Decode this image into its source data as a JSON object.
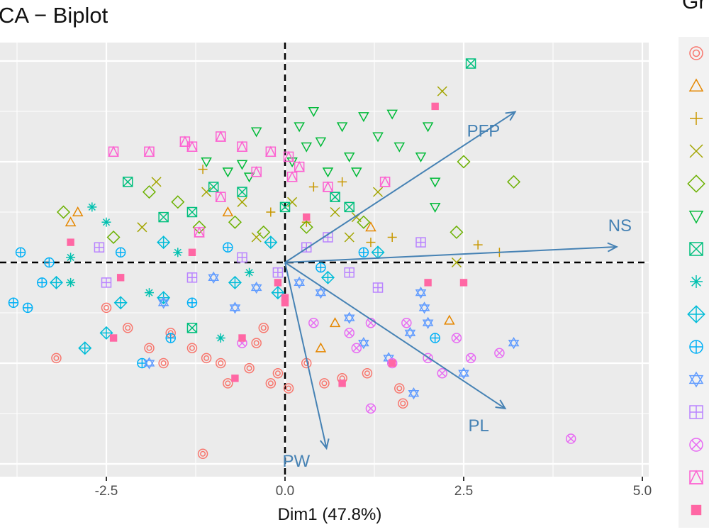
{
  "chart_data": {
    "type": "scatter",
    "title": "CA − Biplot",
    "xlabel": "Dim1 (47.8%)",
    "xlim": [
      -4.0,
      5.1
    ],
    "ylim": [
      -4.25,
      4.35
    ],
    "x_ticks": [
      "-2.5",
      "0.0",
      "2.5",
      "5.0"
    ],
    "x_tick_values": [
      -2.5,
      0,
      2.5,
      5
    ],
    "grid": true,
    "legend_title": "Gr",
    "legend_position": "right",
    "reference_lines": {
      "x": 0,
      "y": 0,
      "style": "dashed"
    },
    "groups": [
      {
        "shape": "circle-double",
        "color": "#F8766D"
      },
      {
        "shape": "triangle-open",
        "color": "#E58700"
      },
      {
        "shape": "plus",
        "color": "#C99800"
      },
      {
        "shape": "cross",
        "color": "#A3A500"
      },
      {
        "shape": "diamond-open",
        "color": "#6BB100"
      },
      {
        "shape": "triangle-down-open",
        "color": "#00BA38"
      },
      {
        "shape": "square-crossed",
        "color": "#00BF7D"
      },
      {
        "shape": "asterisk",
        "color": "#00C0AF"
      },
      {
        "shape": "diamond-plus",
        "color": "#00BCD8"
      },
      {
        "shape": "circle-plus",
        "color": "#00B0F6"
      },
      {
        "shape": "star-of-david",
        "color": "#619CFF"
      },
      {
        "shape": "square-plus",
        "color": "#B983FF"
      },
      {
        "shape": "circle-cross",
        "color": "#E76BF3"
      },
      {
        "shape": "square-triangle",
        "color": "#FD61D1"
      },
      {
        "shape": "square-filled",
        "color": "#FF67A4"
      }
    ],
    "variables": [
      {
        "name": "PFP",
        "x": 3.22,
        "y": 2.99
      },
      {
        "name": "NS",
        "x": 4.64,
        "y": 0.31
      },
      {
        "name": "PL",
        "x": 3.08,
        "y": -2.9
      },
      {
        "name": "PW",
        "x": 0.58,
        "y": -3.69
      }
    ],
    "arrow_color": "#4682B4",
    "points": [
      [
        -3.2,
        -1.9,
        0
      ],
      [
        -2.5,
        -0.9,
        0
      ],
      [
        -2.2,
        -1.3,
        0
      ],
      [
        -1.9,
        -1.7,
        0
      ],
      [
        -1.6,
        -1.4,
        0
      ],
      [
        -1.3,
        -1.7,
        0
      ],
      [
        -1.1,
        -1.9,
        0
      ],
      [
        -0.9,
        -2.0,
        0
      ],
      [
        -0.8,
        -2.4,
        0
      ],
      [
        -0.5,
        -2.1,
        0
      ],
      [
        -0.4,
        -1.6,
        0
      ],
      [
        -0.3,
        -1.3,
        0
      ],
      [
        -0.1,
        -2.2,
        0
      ],
      [
        0.05,
        -2.5,
        0
      ],
      [
        0.3,
        -2.0,
        0
      ],
      [
        0.55,
        -2.4,
        0
      ],
      [
        0.8,
        -2.3,
        0
      ],
      [
        1.15,
        -2.2,
        0
      ],
      [
        1.6,
        -2.5,
        0
      ],
      [
        1.65,
        -2.8,
        0
      ],
      [
        -1.15,
        -3.8,
        0
      ],
      [
        -0.2,
        -2.4,
        0
      ],
      [
        -1.7,
        -2.0,
        0
      ],
      [
        -3.0,
        0.8,
        1
      ],
      [
        -2.9,
        1.0,
        1
      ],
      [
        0.5,
        -1.7,
        1
      ],
      [
        2.3,
        -1.15,
        1
      ],
      [
        0.7,
        -1.2,
        1
      ],
      [
        1.2,
        0.7,
        1
      ],
      [
        -0.8,
        1.0,
        1
      ],
      [
        -1.15,
        1.85,
        2
      ],
      [
        0.4,
        1.5,
        2
      ],
      [
        0.8,
        1.6,
        2
      ],
      [
        1.5,
        0.5,
        2
      ],
      [
        2.7,
        0.35,
        2
      ],
      [
        3.0,
        0.2,
        2
      ],
      [
        1.2,
        0.4,
        2
      ],
      [
        -0.2,
        1.0,
        2
      ],
      [
        0.3,
        0.8,
        2
      ],
      [
        2.2,
        3.4,
        3
      ],
      [
        -1.8,
        1.6,
        3
      ],
      [
        -0.6,
        1.2,
        3
      ],
      [
        0.1,
        1.2,
        3
      ],
      [
        1.0,
        0.9,
        3
      ],
      [
        2.4,
        0.0,
        3
      ],
      [
        -2.0,
        0.7,
        3
      ],
      [
        -1.1,
        1.4,
        3
      ],
      [
        0.7,
        1.0,
        3
      ],
      [
        -0.4,
        0.5,
        3
      ],
      [
        0.9,
        0.5,
        3
      ],
      [
        1.3,
        1.4,
        3
      ],
      [
        -3.1,
        1.0,
        4
      ],
      [
        -1.9,
        1.4,
        4
      ],
      [
        -1.5,
        1.2,
        4
      ],
      [
        -0.7,
        0.8,
        4
      ],
      [
        2.5,
        2.0,
        4
      ],
      [
        3.2,
        1.6,
        4
      ],
      [
        2.4,
        0.6,
        4
      ],
      [
        -2.4,
        0.5,
        4
      ],
      [
        -0.3,
        0.6,
        4
      ],
      [
        0.3,
        0.7,
        4
      ],
      [
        1.1,
        0.8,
        4
      ],
      [
        -1.2,
        0.7,
        4
      ],
      [
        -0.4,
        2.6,
        5
      ],
      [
        0.4,
        3.0,
        5
      ],
      [
        0.5,
        2.4,
        5
      ],
      [
        0.9,
        2.1,
        5
      ],
      [
        1.1,
        2.9,
        5
      ],
      [
        1.3,
        2.5,
        5
      ],
      [
        1.5,
        2.95,
        5
      ],
      [
        1.6,
        2.3,
        5
      ],
      [
        1.9,
        2.1,
        5
      ],
      [
        -1.1,
        2.0,
        5
      ],
      [
        -0.8,
        1.8,
        5
      ],
      [
        0.1,
        2.0,
        5
      ],
      [
        0.2,
        2.7,
        5
      ],
      [
        0.8,
        2.7,
        5
      ],
      [
        2.1,
        1.6,
        5
      ],
      [
        2.0,
        2.7,
        5
      ],
      [
        -0.6,
        1.95,
        5
      ],
      [
        1.0,
        1.8,
        5
      ],
      [
        0.6,
        1.8,
        5
      ],
      [
        2.1,
        1.1,
        5
      ],
      [
        -0.5,
        1.7,
        5
      ],
      [
        0.3,
        2.3,
        5
      ],
      [
        2.6,
        3.95,
        6
      ],
      [
        -1.0,
        1.5,
        6
      ],
      [
        -0.6,
        1.4,
        6
      ],
      [
        -1.3,
        1.0,
        6
      ],
      [
        0.7,
        1.3,
        6
      ],
      [
        0.0,
        1.1,
        6
      ],
      [
        -1.7,
        0.9,
        6
      ],
      [
        -2.2,
        1.6,
        6
      ],
      [
        0.9,
        1.1,
        6
      ],
      [
        -1.3,
        -1.3,
        6
      ],
      [
        -2.7,
        1.1,
        7
      ],
      [
        -3.0,
        0.1,
        7
      ],
      [
        -2.5,
        0.8,
        7
      ],
      [
        -3.0,
        -0.4,
        7
      ],
      [
        -1.9,
        -0.6,
        7
      ],
      [
        -0.9,
        -1.5,
        7
      ],
      [
        -0.5,
        -0.2,
        7
      ],
      [
        -1.5,
        0.2,
        7
      ],
      [
        -3.2,
        -0.4,
        8
      ],
      [
        -2.8,
        -1.7,
        8
      ],
      [
        -2.5,
        -1.4,
        8
      ],
      [
        -2.3,
        -0.8,
        8
      ],
      [
        -1.7,
        -0.7,
        8
      ],
      [
        -0.7,
        -0.4,
        8
      ],
      [
        -0.2,
        0.4,
        8
      ],
      [
        -1.7,
        0.4,
        8
      ],
      [
        -0.1,
        -0.6,
        8
      ],
      [
        0.6,
        -0.3,
        8
      ],
      [
        1.3,
        0.2,
        8
      ],
      [
        -3.7,
        0.2,
        9
      ],
      [
        -3.8,
        -0.8,
        9
      ],
      [
        -3.6,
        -0.9,
        9
      ],
      [
        -3.3,
        0.0,
        9
      ],
      [
        -3.4,
        -0.4,
        9
      ],
      [
        -2.0,
        -2.0,
        9
      ],
      [
        -1.6,
        -1.5,
        9
      ],
      [
        -1.3,
        -0.8,
        9
      ],
      [
        -0.8,
        0.3,
        9
      ],
      [
        -2.3,
        0.2,
        9
      ],
      [
        1.1,
        0.2,
        9
      ],
      [
        0.5,
        -0.1,
        9
      ],
      [
        2.1,
        -1.5,
        9
      ],
      [
        -1.9,
        -2.0,
        10
      ],
      [
        -1.0,
        -0.3,
        10
      ],
      [
        -0.4,
        -0.5,
        10
      ],
      [
        0.5,
        -0.6,
        10
      ],
      [
        0.9,
        -1.1,
        10
      ],
      [
        1.1,
        -1.6,
        10
      ],
      [
        1.45,
        -1.9,
        10
      ],
      [
        1.75,
        -1.4,
        10
      ],
      [
        1.95,
        -0.9,
        10
      ],
      [
        2.0,
        -1.2,
        10
      ],
      [
        2.5,
        -2.2,
        10
      ],
      [
        3.2,
        -1.6,
        10
      ],
      [
        1.8,
        -2.6,
        10
      ],
      [
        0.2,
        -0.4,
        10
      ],
      [
        -0.7,
        -0.9,
        10
      ],
      [
        1.9,
        -0.6,
        10
      ],
      [
        -1.7,
        -0.8,
        10
      ],
      [
        -2.6,
        0.3,
        11
      ],
      [
        -2.5,
        -0.4,
        11
      ],
      [
        -1.3,
        -0.3,
        11
      ],
      [
        -0.6,
        0.1,
        11
      ],
      [
        0.3,
        0.3,
        11
      ],
      [
        0.9,
        -0.2,
        11
      ],
      [
        1.3,
        -0.5,
        11
      ],
      [
        1.9,
        0.4,
        11
      ],
      [
        0.6,
        0.5,
        11
      ],
      [
        -0.1,
        -0.2,
        11
      ],
      [
        4.0,
        -3.5,
        12
      ],
      [
        1.5,
        -2.0,
        12
      ],
      [
        1.0,
        -1.7,
        12
      ],
      [
        2.4,
        -1.5,
        12
      ],
      [
        2.0,
        -1.9,
        12
      ],
      [
        2.6,
        -1.9,
        12
      ],
      [
        3.0,
        -1.8,
        12
      ],
      [
        1.2,
        -2.9,
        12
      ],
      [
        0.9,
        -1.4,
        12
      ],
      [
        2.2,
        -2.2,
        12
      ],
      [
        1.2,
        -1.2,
        12
      ],
      [
        0.4,
        -1.2,
        12
      ],
      [
        -0.6,
        -1.6,
        12
      ],
      [
        1.7,
        -1.2,
        12
      ],
      [
        -2.4,
        2.2,
        13
      ],
      [
        -1.9,
        2.2,
        13
      ],
      [
        -1.4,
        2.4,
        13
      ],
      [
        -1.3,
        2.3,
        13
      ],
      [
        -0.9,
        2.5,
        13
      ],
      [
        -0.6,
        2.3,
        13
      ],
      [
        -0.2,
        2.2,
        13
      ],
      [
        0.05,
        2.1,
        13
      ],
      [
        0.2,
        1.9,
        13
      ],
      [
        -0.4,
        1.8,
        13
      ],
      [
        0.1,
        1.7,
        13
      ],
      [
        1.4,
        1.6,
        13
      ],
      [
        -0.9,
        1.3,
        13
      ],
      [
        -1.2,
        0.6,
        13
      ],
      [
        0.6,
        1.5,
        13
      ],
      [
        -3.0,
        0.4,
        14
      ],
      [
        -2.4,
        -1.5,
        14
      ],
      [
        -0.7,
        -2.3,
        14
      ],
      [
        -0.6,
        -1.5,
        14
      ],
      [
        0.0,
        -0.7,
        14
      ],
      [
        -0.1,
        -0.4,
        14
      ],
      [
        0.3,
        0.9,
        14
      ],
      [
        1.5,
        -2.0,
        14
      ],
      [
        2.0,
        -0.4,
        14
      ],
      [
        2.5,
        -0.4,
        14
      ],
      [
        0.8,
        -2.4,
        14
      ],
      [
        2.1,
        3.1,
        14
      ],
      [
        -2.3,
        -0.3,
        14
      ],
      [
        -1.3,
        0.2,
        14
      ],
      [
        0.0,
        -0.8,
        14
      ]
    ]
  }
}
